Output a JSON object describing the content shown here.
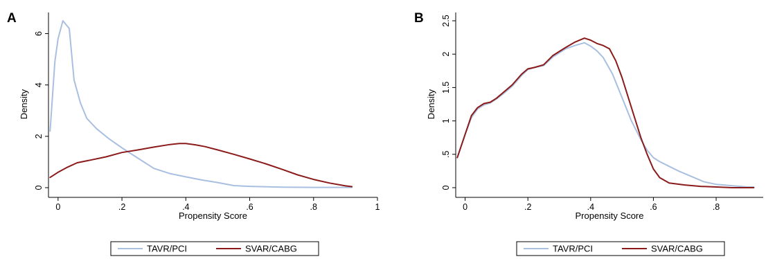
{
  "chart_data": [
    {
      "panel_label": "A",
      "type": "line",
      "title": "",
      "xlabel": "Propensity Score",
      "ylabel": "Density",
      "xlim": [
        -0.03,
        1.0
      ],
      "ylim": [
        0,
        6.5
      ],
      "xticks": [
        0,
        0.2,
        0.4,
        0.6,
        0.8,
        1
      ],
      "xtick_labels": [
        "0",
        ".2",
        ".4",
        ".6",
        ".8",
        "1"
      ],
      "yticks": [
        0,
        2,
        4,
        6
      ],
      "ytick_labels": [
        "0",
        "2",
        "4",
        "6"
      ],
      "grid": false,
      "legend_position": "bottom",
      "series": [
        {
          "name": "TAVR/PCI",
          "color": "#a9bfe0",
          "x": [
            -0.025,
            -0.01,
            0.0,
            0.015,
            0.035,
            0.05,
            0.07,
            0.09,
            0.12,
            0.16,
            0.2,
            0.25,
            0.3,
            0.35,
            0.4,
            0.45,
            0.5,
            0.55,
            0.6,
            0.7,
            0.8,
            0.92
          ],
          "y": [
            2.2,
            4.9,
            5.8,
            6.5,
            6.2,
            4.2,
            3.3,
            2.7,
            2.3,
            1.9,
            1.55,
            1.15,
            0.75,
            0.55,
            0.42,
            0.3,
            0.2,
            0.08,
            0.05,
            0.02,
            0.01,
            0.01
          ]
        },
        {
          "name": "SVAR/CABG",
          "color": "#8b1a1a",
          "x": [
            -0.025,
            0.0,
            0.03,
            0.06,
            0.1,
            0.15,
            0.2,
            0.25,
            0.3,
            0.35,
            0.38,
            0.4,
            0.43,
            0.46,
            0.5,
            0.55,
            0.6,
            0.65,
            0.7,
            0.75,
            0.8,
            0.85,
            0.9,
            0.92
          ],
          "y": [
            0.4,
            0.6,
            0.8,
            0.97,
            1.07,
            1.2,
            1.37,
            1.47,
            1.58,
            1.68,
            1.72,
            1.72,
            1.67,
            1.6,
            1.47,
            1.3,
            1.12,
            0.93,
            0.72,
            0.5,
            0.32,
            0.18,
            0.07,
            0.04
          ]
        }
      ]
    },
    {
      "panel_label": "B",
      "type": "line",
      "title": "",
      "xlabel": "Propensity Score",
      "ylabel": "Density",
      "xlim": [
        -0.03,
        0.95
      ],
      "ylim": [
        0,
        2.5
      ],
      "xticks": [
        0,
        0.2,
        0.4,
        0.6,
        0.8
      ],
      "xtick_labels": [
        "0",
        ".2",
        ".4",
        ".6",
        ".8"
      ],
      "yticks": [
        0,
        0.5,
        1,
        1.5,
        2,
        2.5
      ],
      "ytick_labels": [
        "0",
        ".5",
        "1",
        "1.5",
        "2",
        "2.5"
      ],
      "grid": false,
      "legend_position": "bottom",
      "series": [
        {
          "name": "TAVR/PCI",
          "color": "#a9bfe0",
          "x": [
            -0.025,
            0.0,
            0.02,
            0.04,
            0.06,
            0.08,
            0.1,
            0.12,
            0.15,
            0.18,
            0.2,
            0.22,
            0.25,
            0.28,
            0.32,
            0.35,
            0.38,
            0.4,
            0.42,
            0.44,
            0.47,
            0.5,
            0.53,
            0.56,
            0.58,
            0.6,
            0.62,
            0.65,
            0.68,
            0.72,
            0.76,
            0.8,
            0.85,
            0.9,
            0.92
          ],
          "y": [
            0.45,
            0.8,
            1.05,
            1.18,
            1.24,
            1.27,
            1.33,
            1.4,
            1.52,
            1.68,
            1.77,
            1.8,
            1.83,
            1.96,
            2.08,
            2.13,
            2.17,
            2.12,
            2.05,
            1.95,
            1.7,
            1.35,
            1.0,
            0.72,
            0.56,
            0.45,
            0.39,
            0.32,
            0.25,
            0.17,
            0.09,
            0.05,
            0.03,
            0.01,
            0.01
          ]
        },
        {
          "name": "SVAR/CABG",
          "color": "#8b1a1a",
          "x": [
            -0.025,
            0.0,
            0.02,
            0.04,
            0.06,
            0.08,
            0.1,
            0.12,
            0.15,
            0.18,
            0.2,
            0.22,
            0.25,
            0.28,
            0.32,
            0.35,
            0.38,
            0.4,
            0.42,
            0.44,
            0.46,
            0.48,
            0.5,
            0.53,
            0.56,
            0.58,
            0.6,
            0.62,
            0.65,
            0.7,
            0.75,
            0.8,
            0.85,
            0.9,
            0.92
          ],
          "y": [
            0.45,
            0.8,
            1.08,
            1.2,
            1.26,
            1.28,
            1.34,
            1.42,
            1.54,
            1.7,
            1.78,
            1.8,
            1.84,
            1.98,
            2.1,
            2.18,
            2.24,
            2.21,
            2.16,
            2.13,
            2.08,
            1.9,
            1.65,
            1.2,
            0.75,
            0.5,
            0.28,
            0.15,
            0.07,
            0.04,
            0.02,
            0.01,
            0.0,
            0.0,
            0.0
          ]
        }
      ]
    }
  ]
}
